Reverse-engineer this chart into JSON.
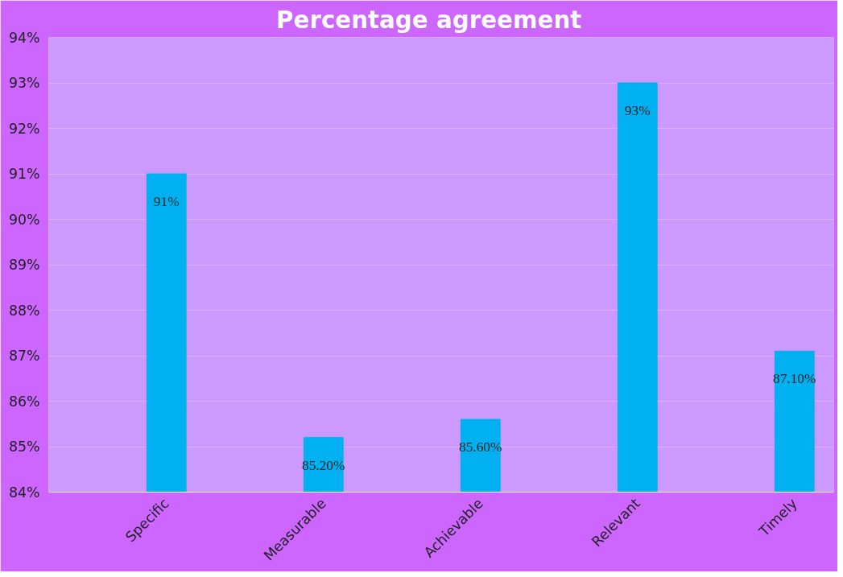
{
  "chart_data": {
    "type": "bar",
    "title": "Percentage    agreement",
    "categories": [
      "Specific",
      "Measurable",
      "Achievable",
      "Relevant",
      "Timely"
    ],
    "values": [
      91,
      85.2,
      85.6,
      93,
      87.1
    ],
    "value_labels": [
      "91%",
      "85.20%",
      "85.60%",
      "93%",
      "87.10%"
    ],
    "color": "#00b0f0",
    "ylim": [
      84,
      94
    ],
    "yticks": [
      {
        "value": 84,
        "label": "84%"
      },
      {
        "value": 85,
        "label": "85%"
      },
      {
        "value": 86,
        "label": "86%"
      },
      {
        "value": 87,
        "label": "87%"
      },
      {
        "value": 88,
        "label": "88%"
      },
      {
        "value": 89,
        "label": "89%"
      },
      {
        "value": 90,
        "label": "90%"
      },
      {
        "value": 91,
        "label": "91%"
      },
      {
        "value": 92,
        "label": "92%"
      },
      {
        "value": 93,
        "label": "93%"
      },
      {
        "value": 94,
        "label": "94%"
      }
    ],
    "grid": "y"
  }
}
